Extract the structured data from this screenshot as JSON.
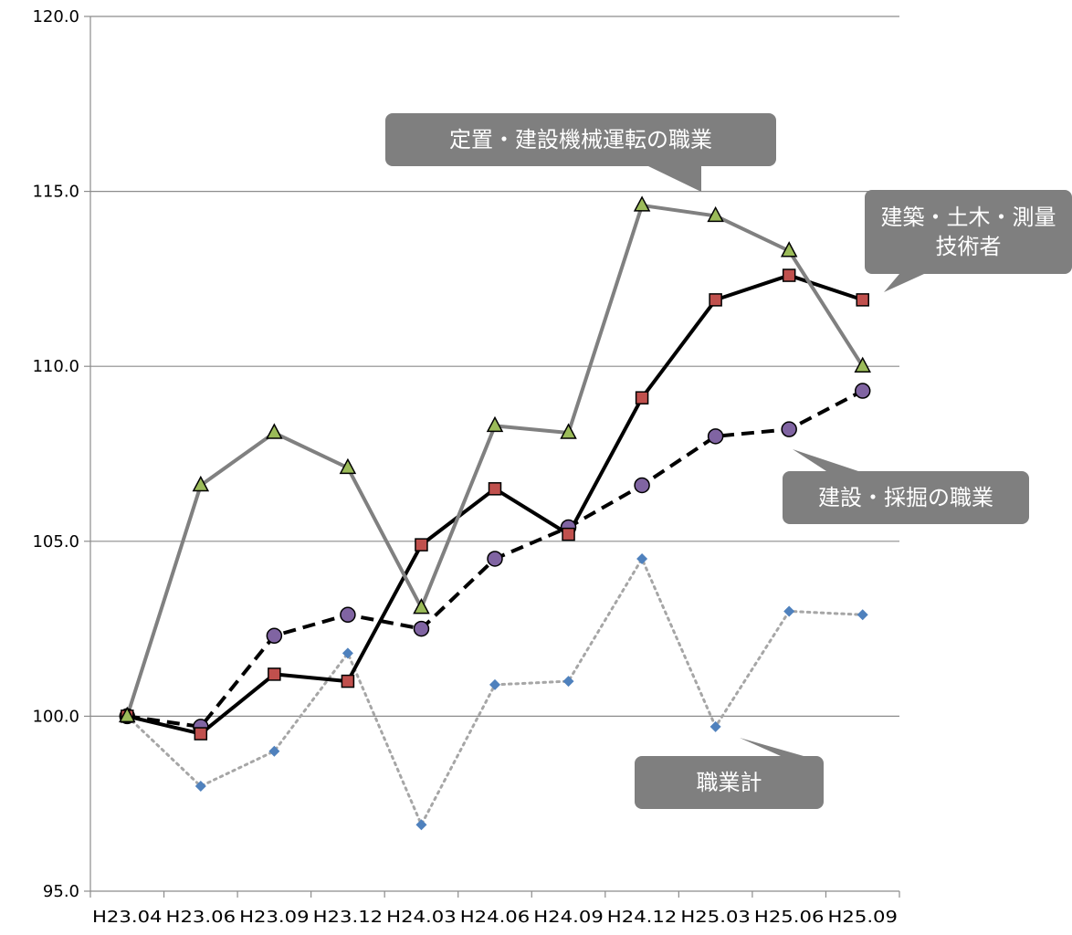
{
  "chart_data": {
    "type": "line",
    "categories": [
      "H23.04",
      "H23.06",
      "H23.09",
      "H23.12",
      "H24.03",
      "H24.06",
      "H24.09",
      "H24.12",
      "H25.03",
      "H25.06",
      "H25.09"
    ],
    "ylim": [
      95,
      120
    ],
    "yticks": [
      "95.0",
      "100.0",
      "105.0",
      "110.0",
      "115.0",
      "120.0"
    ],
    "grid": true,
    "series": [
      {
        "name": "職業計",
        "style": "dotted",
        "line_color": "#a6a6a6",
        "marker": "diamond",
        "marker_color": "#4f81bd",
        "values": [
          100.0,
          98.0,
          99.0,
          101.8,
          96.9,
          100.9,
          101.0,
          104.5,
          99.7,
          103.0,
          102.9
        ]
      },
      {
        "name": "建設・採掘の職業",
        "style": "dashed",
        "line_color": "#000000",
        "marker": "circle",
        "marker_color": "#8064a2",
        "values": [
          100.0,
          99.7,
          102.3,
          102.9,
          102.5,
          104.5,
          105.4,
          106.6,
          108.0,
          108.2,
          109.3
        ]
      },
      {
        "name": "建築・土木・測量技術者",
        "style": "solid",
        "line_color": "#000000",
        "marker": "square",
        "marker_color": "#c0504d",
        "values": [
          100.0,
          99.5,
          101.2,
          101.0,
          104.9,
          106.5,
          105.2,
          109.1,
          111.9,
          112.6,
          111.9
        ]
      },
      {
        "name": "定置・建設機械運転の職業",
        "style": "solid",
        "line_color": "#808080",
        "marker": "triangle",
        "marker_color": "#9bbb59",
        "values": [
          100.0,
          106.6,
          108.1,
          107.1,
          103.1,
          108.3,
          108.1,
          114.6,
          114.3,
          113.3,
          110.0
        ]
      }
    ],
    "callouts": [
      {
        "lines": [
          "定置・建設機械運転の職業"
        ]
      },
      {
        "lines": [
          "建築・土木・測量",
          "技術者"
        ]
      },
      {
        "lines": [
          "建設・採掘の職業"
        ]
      },
      {
        "lines": [
          "職業計"
        ]
      }
    ],
    "callout_color": "#7f7f7f"
  }
}
